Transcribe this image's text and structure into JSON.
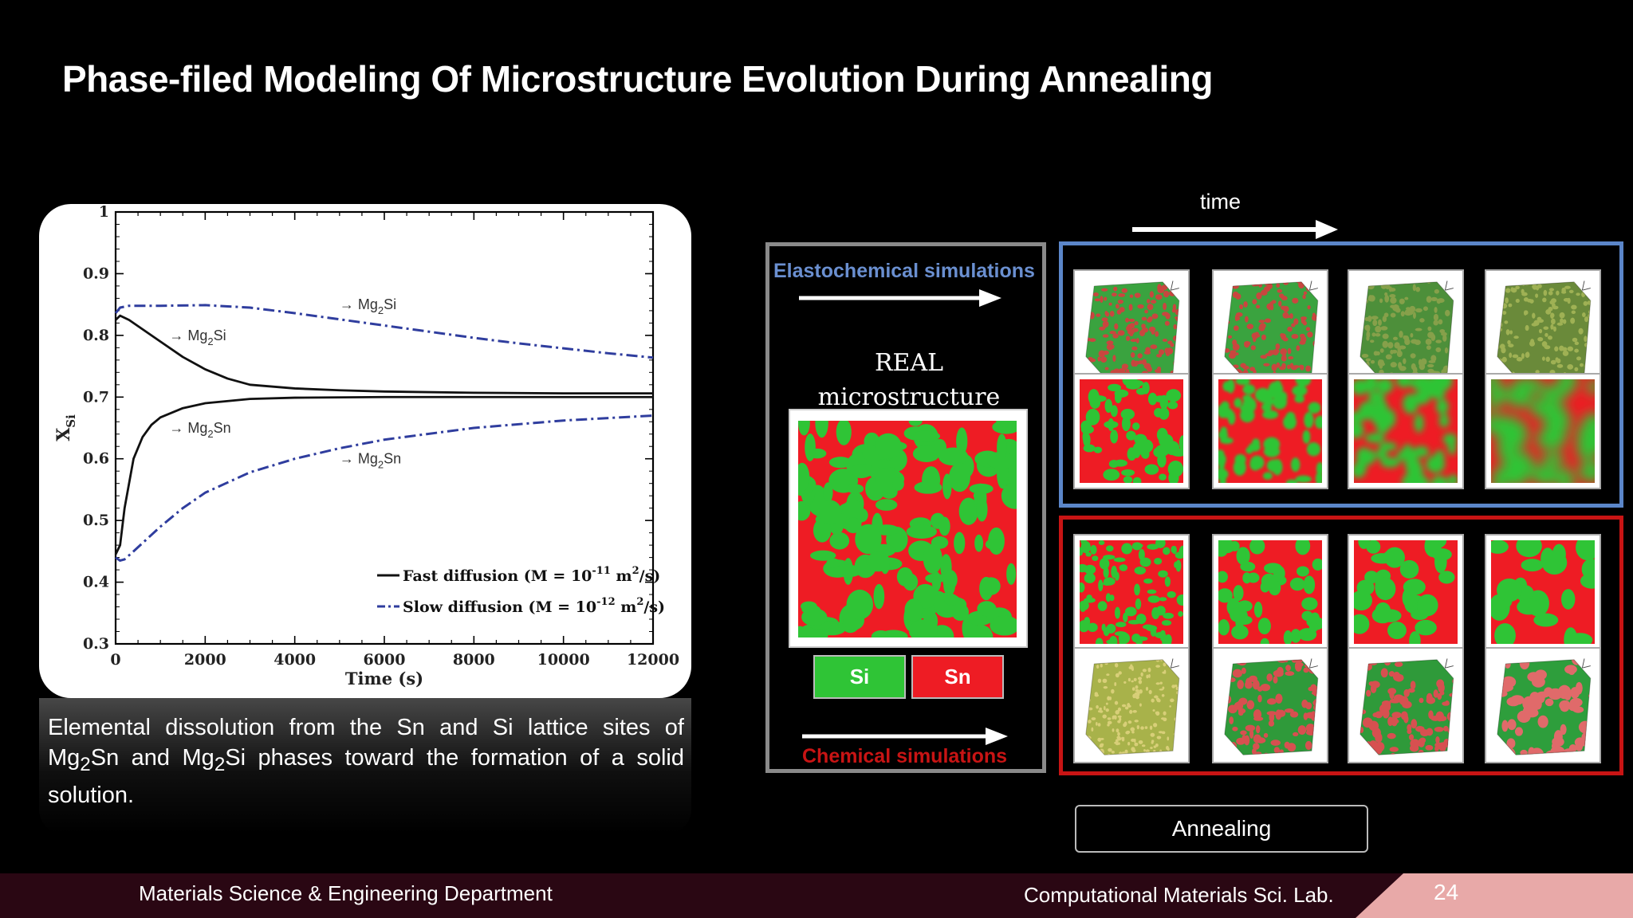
{
  "slide": {
    "title": "Phase-filed Modeling Of Microstructure Evolution During Annealing",
    "caption_html": "Elemental dissolution from the Sn and Si lattice sites of Mg<sub>2</sub>Sn and Mg<sub>2</sub>Si phases toward the formation of a solid solution.",
    "time_label": "time",
    "elasto_label": "Elastochemical simulations",
    "real_label": "REAL microstructure",
    "legend_si": "Si",
    "legend_sn": "Sn",
    "chem_label": "Chemical simulations",
    "annealing_label": "Annealing",
    "footer_left": "Materials Science & Engineering Department",
    "footer_right": "Computational Materials Sci. Lab.",
    "page_number": "24",
    "colors": {
      "si_green": "#2fc436",
      "sn_red": "#ee1c24",
      "blue_frame": "#5b86c9",
      "red_frame": "#c81414",
      "footer": "#2a0713",
      "footer_accent": "#e8a9a8"
    }
  },
  "chart_data": {
    "type": "line",
    "xlabel": "Time (s)",
    "ylabel": "X_Si",
    "xlim": [
      0,
      12000
    ],
    "ylim": [
      0.3,
      1.0
    ],
    "xticks": [
      0,
      2000,
      4000,
      6000,
      8000,
      10000,
      12000
    ],
    "yticks": [
      0.3,
      0.4,
      0.5,
      0.6,
      0.7,
      0.8,
      0.9,
      1
    ],
    "series": [
      {
        "name": "Fast diffusion (M = 10^-11 m^2/s)",
        "style": "solid",
        "phase": "Mg2Si",
        "x": [
          0,
          100,
          300,
          600,
          1000,
          1500,
          2000,
          2500,
          3000,
          4000,
          5000,
          6000,
          8000,
          10000,
          12000
        ],
        "y": [
          0.825,
          0.832,
          0.825,
          0.81,
          0.79,
          0.765,
          0.745,
          0.73,
          0.72,
          0.714,
          0.711,
          0.709,
          0.707,
          0.706,
          0.706
        ]
      },
      {
        "name": "Fast diffusion (M = 10^-11 m^2/s)",
        "style": "solid",
        "phase": "Mg2Sn",
        "x": [
          0,
          100,
          200,
          400,
          600,
          800,
          1000,
          1500,
          2000,
          3000,
          4000,
          6000,
          8000,
          10000,
          12000
        ],
        "y": [
          0.445,
          0.46,
          0.52,
          0.6,
          0.635,
          0.655,
          0.667,
          0.682,
          0.69,
          0.697,
          0.699,
          0.7,
          0.7,
          0.7,
          0.7
        ]
      },
      {
        "name": "Slow diffusion (M = 10^-12 m^2/s)",
        "style": "dashdot",
        "phase": "Mg2Si",
        "x": [
          0,
          100,
          300,
          1000,
          2000,
          3000,
          4000,
          5000,
          6000,
          7000,
          8000,
          9000,
          10000,
          11000,
          12000
        ],
        "y": [
          0.836,
          0.845,
          0.848,
          0.848,
          0.849,
          0.845,
          0.836,
          0.826,
          0.816,
          0.806,
          0.796,
          0.787,
          0.779,
          0.771,
          0.764
        ]
      },
      {
        "name": "Slow diffusion (M = 10^-12 m^2/s)",
        "style": "dashdot",
        "phase": "Mg2Sn",
        "x": [
          0,
          100,
          200,
          400,
          700,
          1000,
          1500,
          2000,
          3000,
          4000,
          5000,
          6000,
          8000,
          10000,
          12000
        ],
        "y": [
          0.44,
          0.435,
          0.437,
          0.45,
          0.47,
          0.49,
          0.52,
          0.545,
          0.578,
          0.6,
          0.617,
          0.631,
          0.65,
          0.662,
          0.67
        ]
      }
    ],
    "annotations": [
      {
        "label": "→ Mg2Si",
        "x": 5000,
        "y": 0.85
      },
      {
        "label": "→ Mg2Si",
        "x": 1200,
        "y": 0.8
      },
      {
        "label": "→ Mg2Sn",
        "x": 1200,
        "y": 0.65
      },
      {
        "label": "→ Mg2Sn",
        "x": 5000,
        "y": 0.6
      }
    ],
    "legend": [
      {
        "text": "Fast diffusion (M = 10^-11 m^2/s)",
        "style": "solid"
      },
      {
        "text": "Slow diffusion (M = 10^-12 m^2/s)",
        "style": "dashdot"
      }
    ],
    "legend_position": "bottom-right"
  },
  "tiles": {
    "elasto_cubes": [
      "cube-green-red-fine",
      "cube-green-red-fine",
      "cube-green-olive",
      "cube-olive"
    ],
    "elasto_maps": [
      "map-sharp",
      "map-blurred",
      "map-diffuse",
      "map-homogenized"
    ],
    "chem_maps": [
      "map-fine",
      "map-coarse",
      "map-coarser",
      "map-coarsest"
    ],
    "chem_cubes": [
      "cube-yellow-fine",
      "cube-green-red",
      "cube-green-red",
      "cube-green-red-coarse"
    ]
  }
}
